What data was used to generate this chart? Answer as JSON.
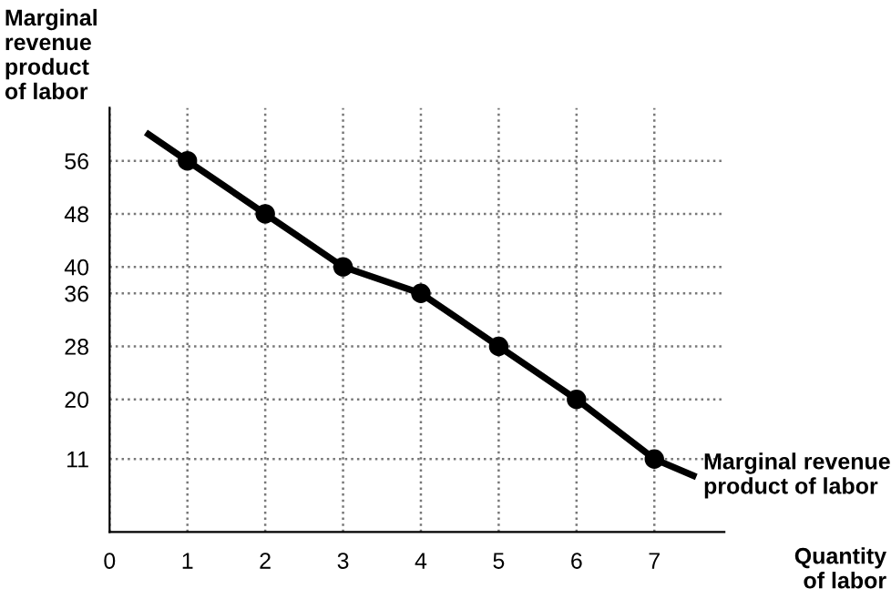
{
  "chart_data": {
    "type": "line",
    "xlabel": "Quantity\nof labor",
    "ylabel": "Marginal\nrevenue\nproduct\nof labor",
    "x": [
      1,
      2,
      3,
      4,
      5,
      6,
      7
    ],
    "series": [
      {
        "type": "scatter",
        "color": "#000000",
        "values": [
          56,
          48,
          40,
          36,
          28,
          20,
          11
        ],
        "marker": "circle"
      },
      {
        "name": "Marginal revenue\nproduct of labor",
        "color": "#000000",
        "x": [
          0.5,
          1,
          2,
          3,
          4,
          5,
          6,
          7,
          7.5
        ],
        "values": [
          60,
          56,
          48,
          40,
          36,
          28,
          20,
          11,
          8.5
        ],
        "marker": "none"
      }
    ],
    "xlim": [
      0,
      7.9
    ],
    "ylim": [
      0,
      64
    ],
    "xticks": [
      0,
      1,
      2,
      3,
      4,
      5,
      6,
      7
    ],
    "yticks": [
      11,
      20,
      28,
      36,
      40,
      48,
      56
    ],
    "grid": true,
    "line_style": "solid",
    "legend": false
  }
}
